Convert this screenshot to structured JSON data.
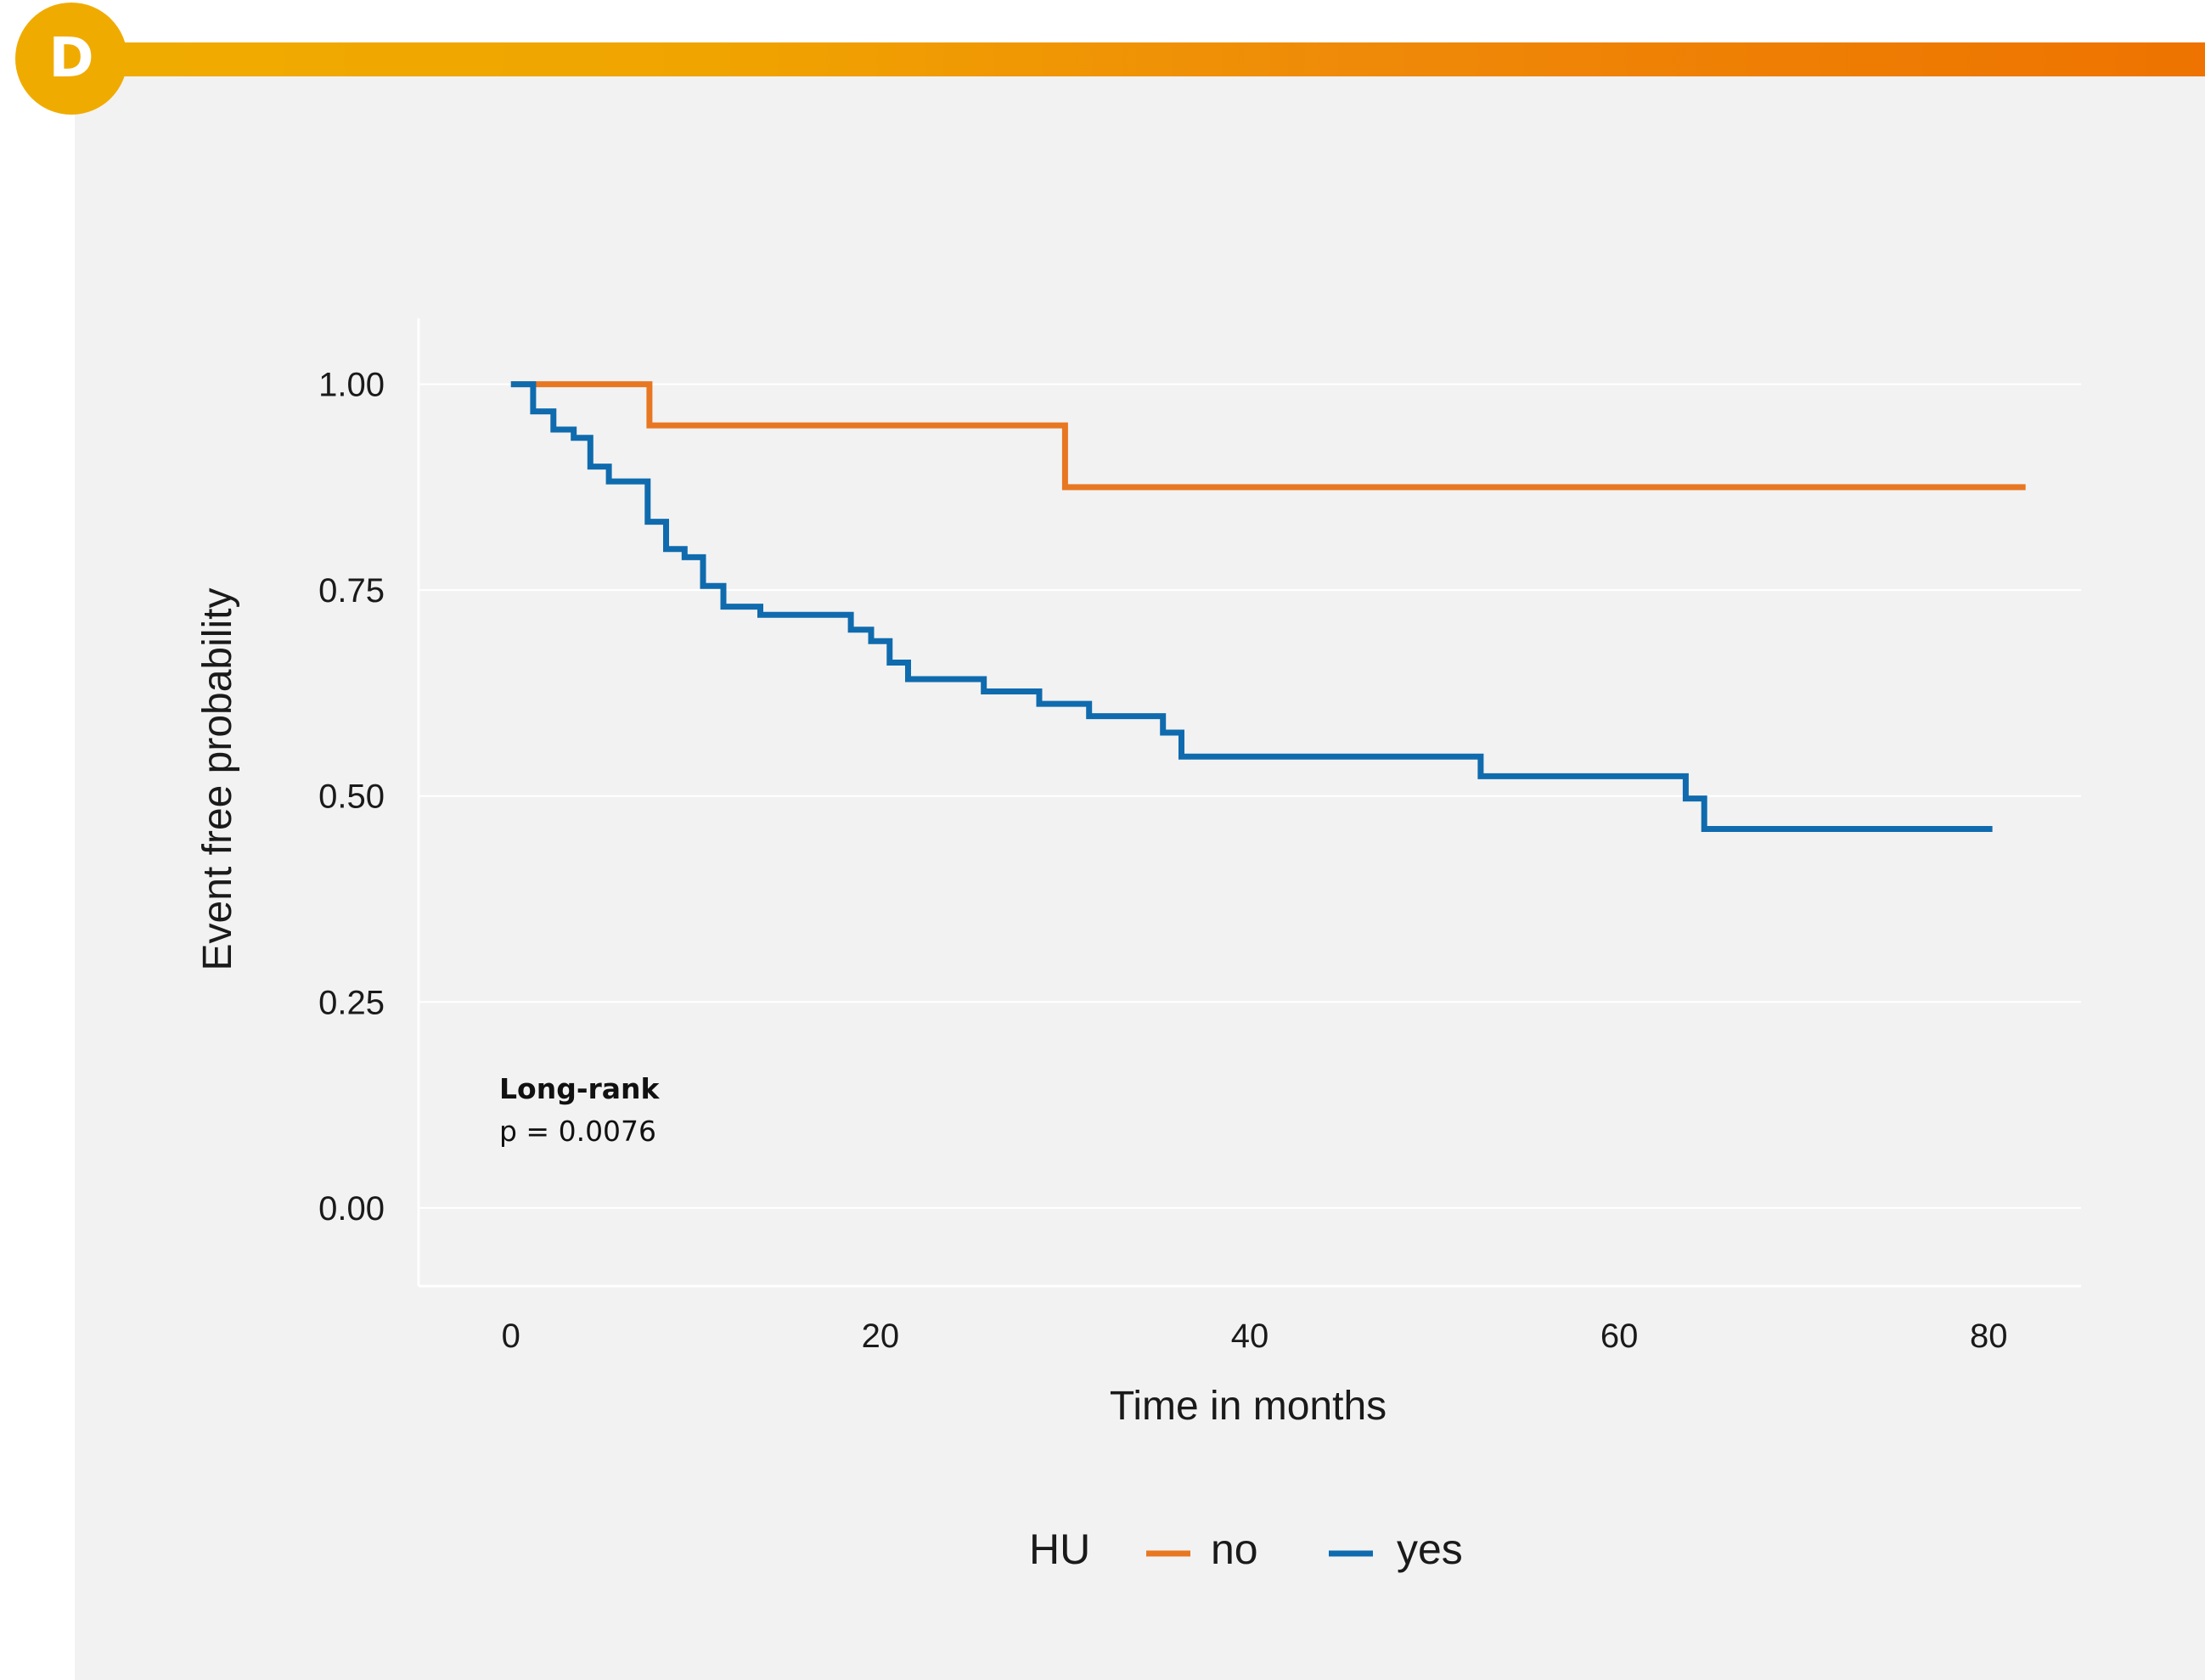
{
  "panel": {
    "label": "D",
    "accent_colors": [
      "#f0ab00",
      "#ee7300"
    ]
  },
  "chart_data": {
    "type": "line",
    "subtype": "kaplan-meier step",
    "xlabel": "Time in months",
    "ylabel": "Event free probability",
    "xlim": [
      -5,
      85
    ],
    "ylim": [
      -0.095,
      1.08
    ],
    "xticks": [
      0,
      20,
      40,
      60,
      80
    ],
    "xtick_labels": [
      "0",
      "20",
      "40",
      "60",
      "80"
    ],
    "yticks": [
      0,
      0.25,
      0.5,
      0.75,
      1
    ],
    "ytick_labels": [
      "0.00",
      "0.25",
      "0.50",
      "0.75",
      "1.00"
    ],
    "grid": "horizontal",
    "annotation": {
      "title": "Long-rank",
      "text": "p = 0.0076"
    },
    "legend": {
      "title": "HU",
      "position": "bottom"
    },
    "series": [
      {
        "name": "no",
        "color": "#e87722",
        "points": [
          [
            0,
            1.0
          ],
          [
            7.5,
            1.0
          ],
          [
            7.5,
            0.95
          ],
          [
            30,
            0.95
          ],
          [
            30,
            0.875
          ],
          [
            82,
            0.875
          ]
        ]
      },
      {
        "name": "yes",
        "color": "#0f6bae",
        "points": [
          [
            0,
            1.0
          ],
          [
            1.2,
            1.0
          ],
          [
            1.2,
            0.967
          ],
          [
            2.3,
            0.967
          ],
          [
            2.3,
            0.945
          ],
          [
            3.4,
            0.945
          ],
          [
            3.4,
            0.935
          ],
          [
            4.3,
            0.935
          ],
          [
            4.3,
            0.9
          ],
          [
            5.3,
            0.9
          ],
          [
            5.3,
            0.882
          ],
          [
            7.4,
            0.882
          ],
          [
            7.4,
            0.833
          ],
          [
            8.4,
            0.833
          ],
          [
            8.4,
            0.8
          ],
          [
            9.4,
            0.8
          ],
          [
            9.4,
            0.79
          ],
          [
            10.4,
            0.79
          ],
          [
            10.4,
            0.755
          ],
          [
            11.5,
            0.755
          ],
          [
            11.5,
            0.73
          ],
          [
            13.5,
            0.73
          ],
          [
            13.5,
            0.72
          ],
          [
            18.4,
            0.72
          ],
          [
            18.4,
            0.702
          ],
          [
            19.5,
            0.702
          ],
          [
            19.5,
            0.688
          ],
          [
            20.5,
            0.688
          ],
          [
            20.5,
            0.662
          ],
          [
            21.5,
            0.662
          ],
          [
            21.5,
            0.642
          ],
          [
            25.6,
            0.642
          ],
          [
            25.6,
            0.627
          ],
          [
            28.6,
            0.627
          ],
          [
            28.6,
            0.612
          ],
          [
            31.3,
            0.612
          ],
          [
            31.3,
            0.597
          ],
          [
            35.3,
            0.597
          ],
          [
            35.3,
            0.577
          ],
          [
            36.3,
            0.577
          ],
          [
            36.3,
            0.548
          ],
          [
            52.5,
            0.548
          ],
          [
            52.5,
            0.524
          ],
          [
            63.6,
            0.524
          ],
          [
            63.6,
            0.497
          ],
          [
            64.6,
            0.497
          ],
          [
            64.6,
            0.46
          ],
          [
            80.2,
            0.46
          ]
        ]
      }
    ]
  }
}
